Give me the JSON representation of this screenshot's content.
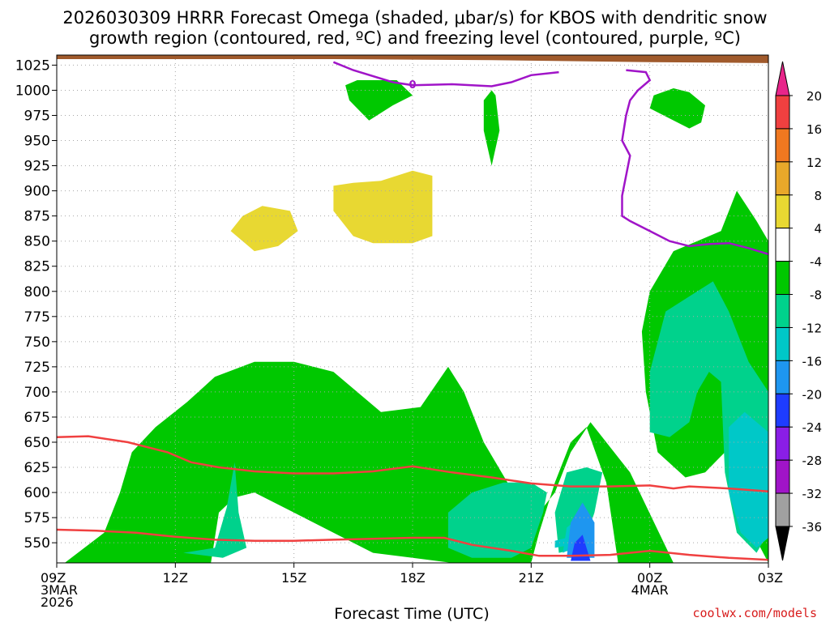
{
  "chart_data": {
    "type": "contour",
    "title_line1": "2026030309 HRRR Forecast Omega (shaded, μbar/s) for KBOS with dendritic snow",
    "title_line2": "growth region (contoured, red, ºC) and freezing level (contoured, purple, ºC)",
    "xlabel": "Forecast Time (UTC)",
    "credit": "coolwx.com/models",
    "y_axis": {
      "scale": "pressure (hPa), inverted",
      "range": [
        1035,
        530
      ],
      "ticks": [
        550,
        575,
        600,
        625,
        650,
        675,
        700,
        725,
        750,
        775,
        800,
        825,
        850,
        875,
        900,
        925,
        950,
        975,
        1000,
        1025
      ]
    },
    "x_axis": {
      "range_hours": [
        9,
        27
      ],
      "ticks": [
        {
          "hour": 9,
          "lines": [
            "09Z",
            "3MAR",
            "2026"
          ]
        },
        {
          "hour": 12,
          "lines": [
            "12Z"
          ]
        },
        {
          "hour": 15,
          "lines": [
            "15Z"
          ]
        },
        {
          "hour": 18,
          "lines": [
            "18Z"
          ]
        },
        {
          "hour": 21,
          "lines": [
            "21Z"
          ]
        },
        {
          "hour": 24,
          "lines": [
            "00Z",
            "4MAR"
          ]
        },
        {
          "hour": 27,
          "lines": [
            "03Z"
          ]
        }
      ]
    },
    "grid": true,
    "colorbar": {
      "labels": [
        "20",
        "16",
        "12",
        "8",
        "4",
        "-4",
        "-8",
        "-12",
        "-16",
        "-20",
        "-24",
        "-28",
        "-32",
        "-36"
      ],
      "colors": [
        "#e8258a",
        "#f04040",
        "#f07820",
        "#e8a82a",
        "#e8d832",
        "#ffffff",
        "#00c800",
        "#00d28c",
        "#00c8c8",
        "#1e96f0",
        "#1e3cff",
        "#8a1ee6",
        "#a014c8",
        "#a0a0a0",
        "#000000"
      ]
    },
    "shaded_regions": [
      {
        "name": "omega -4 to -8",
        "color": "#00c800",
        "polygons": [
          [
            [
              9.2,
              530
            ],
            [
              12.9,
              530
            ],
            [
              13.1,
              580
            ],
            [
              13.5,
              595
            ],
            [
              14.0,
              600
            ],
            [
              15.0,
              580
            ],
            [
              17.0,
              540
            ],
            [
              19.0,
              530
            ],
            [
              21.0,
              530
            ],
            [
              21.2,
              560
            ],
            [
              21.6,
              610
            ],
            [
              22.0,
              650
            ],
            [
              22.4,
              665
            ],
            [
              22.9,
              610
            ],
            [
              23.2,
              530
            ],
            [
              24.6,
              530
            ],
            [
              23.5,
              620
            ],
            [
              22.5,
              670
            ],
            [
              22.0,
              640
            ],
            [
              21.6,
              600
            ],
            [
              21.0,
              570
            ],
            [
              19.8,
              650
            ],
            [
              19.3,
              700
            ],
            [
              18.9,
              725
            ],
            [
              18.2,
              685
            ],
            [
              17.2,
              680
            ],
            [
              16.0,
              720
            ],
            [
              15.0,
              730
            ],
            [
              14.0,
              730
            ],
            [
              13.0,
              715
            ],
            [
              12.3,
              690
            ],
            [
              11.5,
              665
            ],
            [
              10.9,
              640
            ],
            [
              10.6,
              600
            ],
            [
              10.2,
              560
            ]
          ],
          [
            [
              24.2,
              640
            ],
            [
              24.9,
              615
            ],
            [
              25.4,
              620
            ],
            [
              25.9,
              640
            ],
            [
              26.0,
              680
            ],
            [
              25.8,
              700
            ],
            [
              26.4,
              630
            ],
            [
              26.6,
              560
            ],
            [
              27.0,
              530
            ],
            [
              27.0,
              850
            ],
            [
              26.7,
              870
            ],
            [
              26.2,
              900
            ],
            [
              25.8,
              860
            ],
            [
              25.2,
              850
            ],
            [
              24.6,
              840
            ],
            [
              24.0,
              800
            ],
            [
              23.8,
              760
            ],
            [
              23.9,
              700
            ]
          ],
          [
            [
              16.4,
              990
            ],
            [
              16.9,
              970
            ],
            [
              17.5,
              985
            ],
            [
              18.0,
              995
            ],
            [
              17.6,
              1010
            ],
            [
              16.6,
              1010
            ],
            [
              16.3,
              1005
            ]
          ],
          [
            [
              19.8,
              960
            ],
            [
              20.0,
              925
            ],
            [
              20.2,
              960
            ],
            [
              20.1,
              995
            ],
            [
              20.0,
              1000
            ],
            [
              19.8,
              990
            ]
          ],
          [
            [
              24.0,
              982
            ],
            [
              24.5,
              972
            ],
            [
              25.0,
              962
            ],
            [
              25.3,
              968
            ],
            [
              25.4,
              985
            ],
            [
              25.0,
              998
            ],
            [
              24.6,
              1002
            ],
            [
              24.1,
              995
            ]
          ]
        ]
      },
      {
        "name": "omega -8 to -12",
        "color": "#00d28c",
        "polygons": [
          [
            [
              12.2,
              540
            ],
            [
              13.0,
              545
            ],
            [
              13.3,
              585
            ],
            [
              13.5,
              630
            ],
            [
              13.6,
              580
            ],
            [
              13.8,
              545
            ],
            [
              13.2,
              535
            ]
          ],
          [
            [
              18.9,
              545
            ],
            [
              19.5,
              535
            ],
            [
              20.5,
              535
            ],
            [
              21.0,
              545
            ],
            [
              21.3,
              580
            ],
            [
              21.4,
              600
            ],
            [
              21.0,
              610
            ],
            [
              20.3,
              610
            ],
            [
              19.5,
              600
            ],
            [
              18.9,
              580
            ]
          ],
          [
            [
              21.7,
              540
            ],
            [
              22.3,
              545
            ],
            [
              22.6,
              580
            ],
            [
              22.8,
              620
            ],
            [
              22.4,
              625
            ],
            [
              21.9,
              620
            ],
            [
              21.6,
              580
            ]
          ],
          [
            [
              24.0,
              660
            ],
            [
              24.5,
              655
            ],
            [
              25.0,
              670
            ],
            [
              25.2,
              700
            ],
            [
              25.5,
              720
            ],
            [
              25.8,
              710
            ],
            [
              25.9,
              620
            ],
            [
              26.2,
              560
            ],
            [
              26.7,
              540
            ],
            [
              27.0,
              560
            ],
            [
              27.0,
              700
            ],
            [
              26.5,
              730
            ],
            [
              26.0,
              780
            ],
            [
              25.6,
              810
            ],
            [
              25.0,
              795
            ],
            [
              24.4,
              780
            ],
            [
              24.0,
              720
            ]
          ]
        ]
      },
      {
        "name": "omega -12 to -16",
        "color": "#00c8c8",
        "polygons": [
          [
            [
              26.0,
              600
            ],
            [
              26.3,
              560
            ],
            [
              26.7,
              545
            ],
            [
              27.0,
              555
            ],
            [
              27.0,
              660
            ],
            [
              26.4,
              680
            ],
            [
              26.0,
              665
            ]
          ],
          [
            [
              21.8,
              540
            ],
            [
              22.3,
              550
            ],
            [
              22.6,
              570
            ],
            [
              22.2,
              575
            ],
            [
              21.9,
              565
            ]
          ],
          [
            [
              21.6,
              545
            ],
            [
              22.0,
              548
            ],
            [
              21.9,
              555
            ],
            [
              21.6,
              552
            ]
          ]
        ]
      },
      {
        "name": "omega -16 to -20",
        "color": "#1e96f0",
        "polygons": [
          [
            [
              21.9,
              535
            ],
            [
              22.6,
              535
            ],
            [
              22.6,
              570
            ],
            [
              22.3,
              590
            ],
            [
              22.0,
              570
            ]
          ]
        ]
      },
      {
        "name": "omega -20 to -24",
        "color": "#1e3cff",
        "polygons": [
          [
            [
              22.0,
              532
            ],
            [
              22.5,
              532
            ],
            [
              22.3,
              558
            ],
            [
              22.1,
              550
            ]
          ]
        ]
      },
      {
        "name": "omega 4 to 8",
        "color": "#e8d832",
        "polygons": [
          [
            [
              13.4,
              860
            ],
            [
              14.0,
              840
            ],
            [
              14.6,
              845
            ],
            [
              15.1,
              860
            ],
            [
              14.9,
              880
            ],
            [
              14.2,
              885
            ],
            [
              13.7,
              875
            ]
          ],
          [
            [
              16.0,
              880
            ],
            [
              16.5,
              855
            ],
            [
              17.0,
              848
            ],
            [
              18.0,
              848
            ],
            [
              18.5,
              855
            ],
            [
              18.5,
              915
            ],
            [
              18.0,
              920
            ],
            [
              17.2,
              910
            ],
            [
              16.5,
              908
            ],
            [
              16.0,
              905
            ]
          ]
        ]
      }
    ],
    "ground": {
      "name": "terrain",
      "color": "#a05a2c",
      "bottom": 1035,
      "line": [
        [
          9,
          1031
        ],
        [
          16,
          1031
        ],
        [
          20,
          1030
        ],
        [
          24,
          1028
        ],
        [
          27,
          1027
        ]
      ]
    },
    "contours": [
      {
        "name": "dendritic snow growth upper",
        "color": "#f04040",
        "points": [
          [
            9,
            563
          ],
          [
            10,
            562
          ],
          [
            11,
            560
          ],
          [
            12,
            556
          ],
          [
            13,
            553
          ],
          [
            14,
            552
          ],
          [
            15,
            552
          ],
          [
            16,
            553
          ],
          [
            17,
            554
          ],
          [
            18,
            555
          ],
          [
            18.8,
            555
          ],
          [
            19.5,
            548
          ],
          [
            20.5,
            542
          ],
          [
            21.2,
            537
          ],
          [
            22,
            537
          ],
          [
            23,
            538
          ],
          [
            24,
            542
          ],
          [
            25,
            538
          ],
          [
            26,
            535
          ],
          [
            27,
            533
          ]
        ]
      },
      {
        "name": "dendritic snow growth lower",
        "color": "#f04040",
        "points": [
          [
            9,
            655
          ],
          [
            9.8,
            656
          ],
          [
            10.8,
            650
          ],
          [
            11.8,
            640
          ],
          [
            12.4,
            630
          ],
          [
            13.1,
            625
          ],
          [
            14,
            621
          ],
          [
            15,
            619
          ],
          [
            16,
            619
          ],
          [
            17,
            621
          ],
          [
            18,
            626
          ],
          [
            19,
            620
          ],
          [
            20,
            615
          ],
          [
            21,
            609
          ],
          [
            22,
            606
          ],
          [
            23,
            606
          ],
          [
            24,
            607
          ],
          [
            24.6,
            604
          ],
          [
            25,
            606
          ],
          [
            26,
            604
          ],
          [
            27,
            601
          ]
        ]
      },
      {
        "name": "freezing level",
        "color": "#a014c8",
        "points": [
          [
            16,
            1028
          ],
          [
            16.5,
            1020
          ],
          [
            17.5,
            1008
          ],
          [
            18,
            1005
          ],
          [
            19,
            1006
          ],
          [
            20,
            1004
          ],
          [
            20.5,
            1008
          ],
          [
            21,
            1015
          ],
          [
            21.7,
            1018
          ]
        ]
      },
      {
        "name": "freezing level 2",
        "color": "#a014c8",
        "points": [
          [
            23.4,
            1020
          ],
          [
            23.9,
            1018
          ],
          [
            24,
            1010
          ],
          [
            23.7,
            1000
          ],
          [
            23.5,
            990
          ],
          [
            23.4,
            975
          ],
          [
            23.3,
            950
          ],
          [
            23.5,
            935
          ],
          [
            23.4,
            915
          ],
          [
            23.3,
            895
          ],
          [
            23.3,
            875
          ],
          [
            23.5,
            870
          ],
          [
            24.0,
            860
          ],
          [
            24.5,
            850
          ],
          [
            25,
            845
          ],
          [
            25.5,
            847
          ],
          [
            26,
            848
          ],
          [
            26.5,
            843
          ],
          [
            27,
            837
          ]
        ]
      }
    ],
    "annotations": [
      {
        "text": "0",
        "hour": 18,
        "pressure": 1006,
        "color": "#a014c8"
      }
    ]
  }
}
